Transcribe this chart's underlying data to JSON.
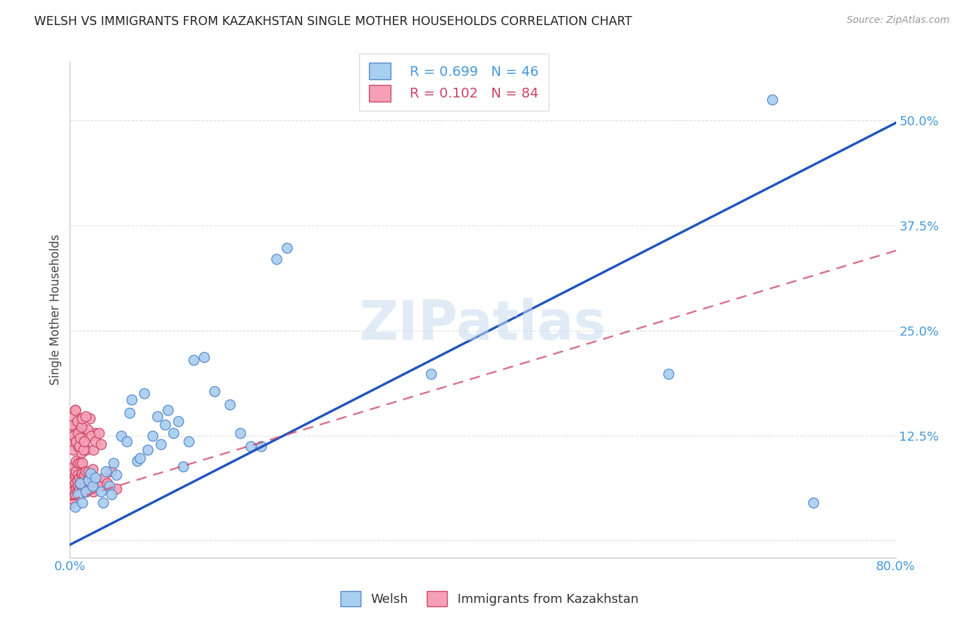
{
  "title": "WELSH VS IMMIGRANTS FROM KAZAKHSTAN SINGLE MOTHER HOUSEHOLDS CORRELATION CHART",
  "source": "Source: ZipAtlas.com",
  "ylabel": "Single Mother Households",
  "xlim": [
    0.0,
    0.8
  ],
  "ylim": [
    -0.02,
    0.57
  ],
  "xticks": [
    0.0,
    0.1,
    0.2,
    0.3,
    0.4,
    0.5,
    0.6,
    0.7,
    0.8
  ],
  "xticklabels": [
    "0.0%",
    "",
    "",
    "",
    "",
    "",
    "",
    "",
    "80.0%"
  ],
  "yticks": [
    0.0,
    0.125,
    0.25,
    0.375,
    0.5
  ],
  "yticklabels": [
    "",
    "12.5%",
    "25.0%",
    "37.5%",
    "50.0%"
  ],
  "welsh_color": "#a8cef0",
  "welsh_edge_color": "#5588cc",
  "kazakhstan_color": "#f5a0b5",
  "kazakhstan_edge_color": "#cc4466",
  "trend_welsh_color": "#2255bb",
  "trend_kazakhstan_color": "#cc4466",
  "legend_welsh_label": "Welsh",
  "legend_kazakhstan_label": "Immigrants from Kazakhstan",
  "watermark": "ZIPatlas",
  "trend_welsh_x0": 0.0,
  "trend_welsh_y0": -0.005,
  "trend_welsh_x1": 0.8,
  "trend_welsh_y1": 0.497,
  "trend_kaz_x0": 0.0,
  "trend_kaz_y0": 0.048,
  "trend_kaz_x1": 0.8,
  "trend_kaz_y1": 0.345,
  "welsh_x": [
    0.005,
    0.008,
    0.01,
    0.012,
    0.015,
    0.018,
    0.02,
    0.022,
    0.025,
    0.03,
    0.032,
    0.035,
    0.038,
    0.04,
    0.042,
    0.045,
    0.05,
    0.055,
    0.058,
    0.06,
    0.065,
    0.068,
    0.072,
    0.075,
    0.08,
    0.085,
    0.088,
    0.092,
    0.095,
    0.1,
    0.105,
    0.11,
    0.115,
    0.12,
    0.13,
    0.14,
    0.155,
    0.165,
    0.175,
    0.185,
    0.2,
    0.21,
    0.35,
    0.58,
    0.68,
    0.72
  ],
  "welsh_y": [
    0.04,
    0.055,
    0.068,
    0.045,
    0.058,
    0.072,
    0.08,
    0.065,
    0.075,
    0.058,
    0.045,
    0.082,
    0.065,
    0.055,
    0.092,
    0.078,
    0.125,
    0.118,
    0.152,
    0.168,
    0.095,
    0.098,
    0.175,
    0.108,
    0.125,
    0.148,
    0.115,
    0.138,
    0.155,
    0.128,
    0.142,
    0.088,
    0.118,
    0.215,
    0.218,
    0.178,
    0.162,
    0.128,
    0.112,
    0.112,
    0.335,
    0.348,
    0.198,
    0.198,
    0.525,
    0.045
  ],
  "kazakhstan_x": [
    0.001,
    0.001,
    0.002,
    0.002,
    0.002,
    0.003,
    0.003,
    0.003,
    0.004,
    0.004,
    0.004,
    0.005,
    0.005,
    0.005,
    0.006,
    0.006,
    0.006,
    0.007,
    0.007,
    0.008,
    0.008,
    0.008,
    0.009,
    0.009,
    0.01,
    0.01,
    0.011,
    0.011,
    0.012,
    0.012,
    0.013,
    0.013,
    0.014,
    0.015,
    0.015,
    0.016,
    0.017,
    0.018,
    0.019,
    0.02,
    0.021,
    0.022,
    0.023,
    0.025,
    0.027,
    0.03,
    0.033,
    0.036,
    0.04,
    0.045,
    0.002,
    0.003,
    0.004,
    0.005,
    0.006,
    0.007,
    0.008,
    0.009,
    0.01,
    0.011,
    0.012,
    0.013,
    0.015,
    0.017,
    0.019,
    0.021,
    0.023,
    0.025,
    0.028,
    0.03,
    0.002,
    0.003,
    0.004,
    0.005,
    0.006,
    0.007,
    0.008,
    0.009,
    0.01,
    0.011,
    0.012,
    0.013,
    0.014,
    0.015
  ],
  "kazakhstan_y": [
    0.045,
    0.06,
    0.05,
    0.065,
    0.075,
    0.055,
    0.068,
    0.082,
    0.06,
    0.072,
    0.088,
    0.055,
    0.068,
    0.078,
    0.082,
    0.095,
    0.062,
    0.072,
    0.058,
    0.065,
    0.078,
    0.092,
    0.062,
    0.075,
    0.055,
    0.092,
    0.065,
    0.078,
    0.08,
    0.092,
    0.062,
    0.072,
    0.078,
    0.082,
    0.065,
    0.058,
    0.072,
    0.082,
    0.062,
    0.065,
    0.075,
    0.085,
    0.058,
    0.128,
    0.072,
    0.065,
    0.075,
    0.068,
    0.082,
    0.062,
    0.118,
    0.108,
    0.135,
    0.155,
    0.118,
    0.138,
    0.112,
    0.128,
    0.145,
    0.105,
    0.125,
    0.115,
    0.108,
    0.132,
    0.145,
    0.125,
    0.108,
    0.118,
    0.128,
    0.115,
    0.138,
    0.148,
    0.125,
    0.155,
    0.118,
    0.142,
    0.128,
    0.112,
    0.122,
    0.135,
    0.145,
    0.108,
    0.118,
    0.148
  ]
}
